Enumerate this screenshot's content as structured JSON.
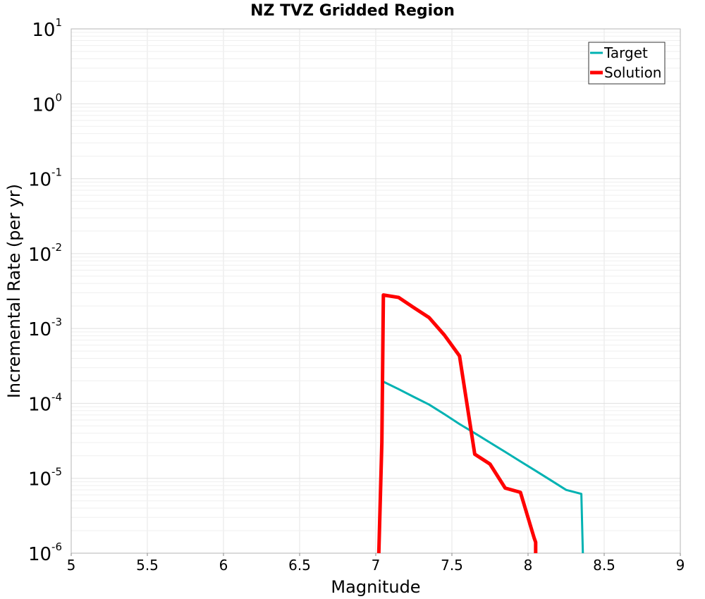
{
  "chart_data": {
    "type": "line",
    "title": "NZ TVZ Gridded Region",
    "xlabel": "Magnitude",
    "ylabel": "Incremental Rate (per yr)",
    "xlim": [
      5,
      9
    ],
    "ylim": [
      1e-06,
      10
    ],
    "yscale": "log",
    "grid": true,
    "x_ticks": [
      5,
      5.5,
      6,
      6.5,
      7,
      7.5,
      8,
      8.5,
      9
    ],
    "x_tick_labels": [
      "5",
      "5.5",
      "6",
      "6.5",
      "7",
      "7.5",
      "8",
      "8.5",
      "9"
    ],
    "y_ticks": [
      {
        "value": 1e-06,
        "base": "10",
        "exp": "-6"
      },
      {
        "value": 1e-05,
        "base": "10",
        "exp": "-5"
      },
      {
        "value": 0.0001,
        "base": "10",
        "exp": "-4"
      },
      {
        "value": 0.001,
        "base": "10",
        "exp": "-3"
      },
      {
        "value": 0.01,
        "base": "10",
        "exp": "-2"
      },
      {
        "value": 0.1,
        "base": "10",
        "exp": "-1"
      },
      {
        "value": 1,
        "base": "10",
        "exp": "0"
      },
      {
        "value": 10,
        "base": "10",
        "exp": "1"
      }
    ],
    "legend_position": "top-right",
    "series": [
      {
        "name": "Target",
        "color": "#00b2b2",
        "line_style": "thin",
        "x": [
          7.05,
          7.15,
          7.25,
          7.35,
          7.45,
          7.55,
          7.65,
          7.75,
          7.85,
          7.95,
          8.05,
          8.15,
          8.25,
          8.35,
          8.36
        ],
        "y": [
          0.000195,
          0.000155,
          0.000122,
          9.65e-05,
          7.2e-05,
          5.3e-05,
          4e-05,
          3e-05,
          2.25e-05,
          1.68e-05,
          1.26e-05,
          9.4e-06,
          7e-06,
          6.2e-06,
          1e-06
        ]
      },
      {
        "name": "Solution",
        "color": "#ff0000",
        "line_style": "thick",
        "x": [
          7.02,
          7.04,
          7.05,
          7.15,
          7.25,
          7.35,
          7.45,
          7.55,
          7.65,
          7.75,
          7.85,
          7.95,
          8.04,
          8.05,
          8.05
        ],
        "y": [
          1e-06,
          3e-05,
          0.0028,
          0.0026,
          0.0019,
          0.0014,
          0.00082,
          0.00043,
          2.1e-05,
          1.55e-05,
          7.4e-06,
          6.5e-06,
          1.6e-06,
          1.4e-06,
          1e-06
        ]
      }
    ]
  }
}
